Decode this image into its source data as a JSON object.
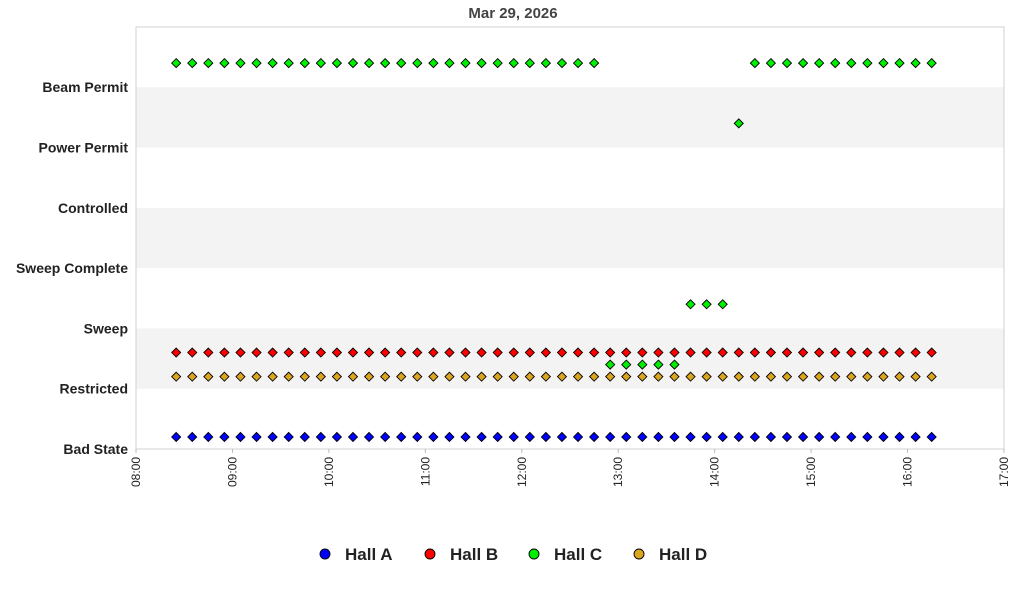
{
  "chart_data": {
    "type": "scatter",
    "title": "Mar 29, 2026",
    "xlabel": "",
    "ylabel": "",
    "x_range": [
      "08:00",
      "17:00"
    ],
    "x_ticks": [
      "08:00",
      "09:00",
      "10:00",
      "11:00",
      "12:00",
      "13:00",
      "14:00",
      "15:00",
      "16:00",
      "17:00"
    ],
    "y_categories": [
      "Bad State",
      "Restricted",
      "Sweep",
      "Sweep Complete",
      "Controlled",
      "Power Permit",
      "Beam Permit"
    ],
    "grid": "alternating horizontal bands",
    "legend_position": "bottom",
    "sample_interval_minutes": 10,
    "series": [
      {
        "name": "Hall A",
        "color": "#0000ff",
        "segments": [
          {
            "from": "08:25",
            "to": "16:15",
            "level": 0.2
          }
        ],
        "points": []
      },
      {
        "name": "Hall B",
        "color": "#ff0000",
        "segments": [
          {
            "from": "08:25",
            "to": "16:15",
            "level": 1.6
          }
        ],
        "points": []
      },
      {
        "name": "Hall C",
        "color": "#00ee00",
        "segments": [
          {
            "from": "08:25",
            "to": "12:45",
            "level": 6.4
          },
          {
            "from": "14:25",
            "to": "16:15",
            "level": 6.4
          },
          {
            "from": "12:55",
            "to": "13:35",
            "level": 1.4
          },
          {
            "from": "13:45",
            "to": "14:05",
            "level": 2.4
          }
        ],
        "points": [
          {
            "x": "14:15",
            "y": 5.4
          }
        ]
      },
      {
        "name": "Hall D",
        "color": "#daa520",
        "segments": [
          {
            "from": "08:25",
            "to": "16:15",
            "level": 1.2
          }
        ],
        "points": []
      }
    ]
  }
}
